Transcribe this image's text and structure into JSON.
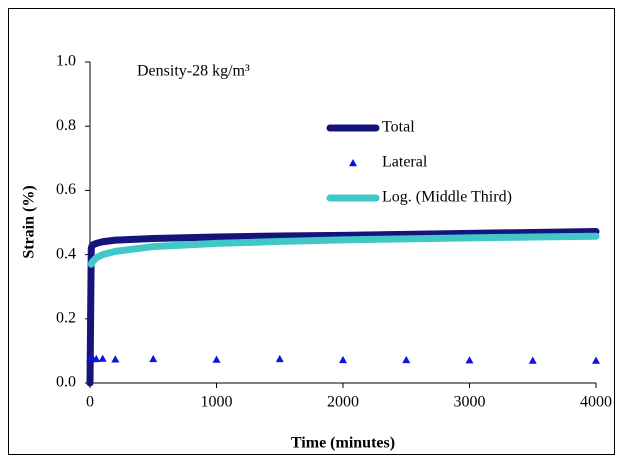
{
  "chart_data": {
    "type": "line",
    "annotation": "Density-28 kg/m³",
    "x_label": "Time (minutes)",
    "y_label": "Strain (%)",
    "x": [
      0,
      10,
      20,
      50,
      100,
      200,
      500,
      1000,
      1500,
      2000,
      2500,
      3000,
      3500,
      4000
    ],
    "series": [
      {
        "name": "Total",
        "color": "#14147a",
        "style": "line",
        "values": [
          0,
          0.42,
          0.43,
          0.435,
          0.44,
          0.445,
          0.45,
          0.455,
          0.458,
          0.46,
          0.463,
          0.466,
          0.469,
          0.472
        ]
      },
      {
        "name": "Lateral",
        "color": "#1010e0",
        "style": "markers",
        "values": [
          0.075,
          0.075,
          0.078,
          0.075,
          0.076,
          0.074,
          0.075,
          0.073,
          0.075,
          0.072,
          0.072,
          0.071,
          0.07,
          0.07
        ]
      },
      {
        "name": "Log. (Middle Third)",
        "color": "#40c8c8",
        "style": "line",
        "values": [
          null,
          0.37,
          0.378,
          0.39,
          0.4,
          0.41,
          0.425,
          0.435,
          0.441,
          0.446,
          0.449,
          0.452,
          0.455,
          0.457
        ]
      }
    ],
    "xlim": [
      0,
      4000
    ],
    "xticks": [
      0,
      1000,
      2000,
      3000,
      4000
    ],
    "ylim": [
      0,
      1
    ],
    "yticks": [
      {
        "value": 0,
        "label": "0.0"
      },
      {
        "value": 0.2,
        "label": "0.2"
      },
      {
        "value": 0.4,
        "label": "0.4"
      },
      {
        "value": 0.6,
        "label": "0.6"
      },
      {
        "value": 0.8,
        "label": "0.8"
      },
      {
        "value": 1,
        "label": "1.0"
      }
    ],
    "grid": false
  }
}
